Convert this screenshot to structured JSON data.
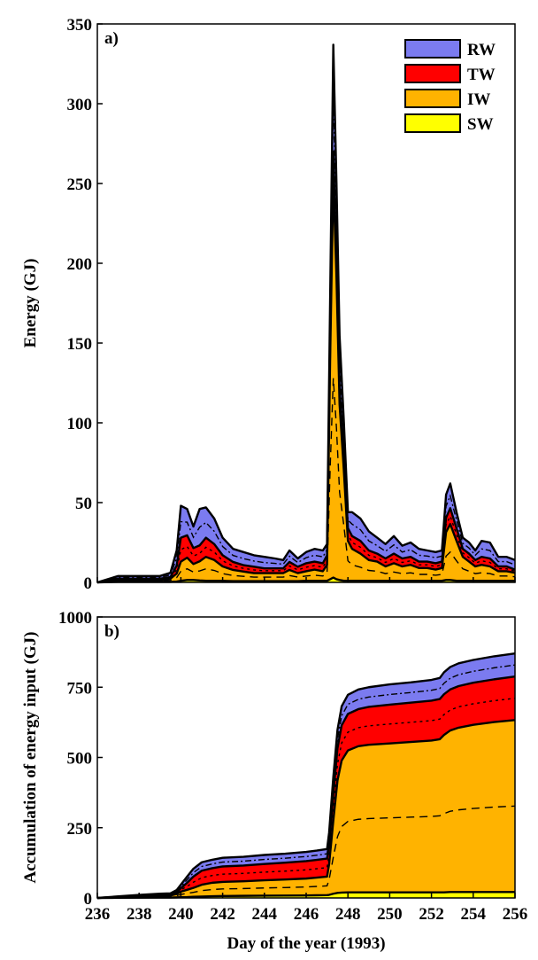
{
  "chart_data": [
    {
      "panel": "a)",
      "type": "area",
      "stacked": true,
      "ylabel": "Energy (GJ)",
      "ylim": [
        0,
        350
      ],
      "yticks": [
        0,
        50,
        100,
        150,
        200,
        250,
        300,
        350
      ],
      "xlim": [
        236,
        256
      ],
      "xticks": [
        236,
        238,
        240,
        242,
        244,
        246,
        248,
        250,
        252,
        254,
        256
      ],
      "legend": {
        "position": "top-right",
        "entries": [
          "RW",
          "TW",
          "IW",
          "SW"
        ]
      },
      "x": [
        236.0,
        236.5,
        237.0,
        237.5,
        238.0,
        238.5,
        239.0,
        239.5,
        239.8,
        240.0,
        240.3,
        240.6,
        240.9,
        241.2,
        241.6,
        242.0,
        242.5,
        243.0,
        243.5,
        244.0,
        244.5,
        244.9,
        245.2,
        245.6,
        246.0,
        246.4,
        246.8,
        247.0,
        247.15,
        247.3,
        247.45,
        247.6,
        247.8,
        248.0,
        248.2,
        248.6,
        249.0,
        249.4,
        249.8,
        250.2,
        250.6,
        251.0,
        251.4,
        251.8,
        252.2,
        252.5,
        252.7,
        252.9,
        253.2,
        253.5,
        253.8,
        254.1,
        254.4,
        254.8,
        255.2,
        255.6,
        256.0
      ],
      "series": [
        {
          "name": "SW",
          "color": "#ffff00",
          "values": [
            0,
            0.2,
            0.3,
            0.3,
            0.3,
            0.3,
            0.3,
            0.3,
            0.5,
            1.0,
            1.5,
            1.5,
            1.2,
            1.0,
            1.0,
            1.0,
            0.8,
            0.8,
            0.8,
            0.8,
            0.8,
            0.8,
            0.8,
            0.8,
            1.0,
            1.0,
            1.0,
            1.0,
            2.0,
            3.0,
            2.0,
            1.5,
            1.0,
            1.0,
            1.0,
            1.0,
            1.0,
            1.0,
            1.0,
            1.0,
            1.0,
            1.0,
            1.0,
            1.0,
            1.0,
            1.0,
            1.5,
            1.5,
            1.0,
            1.0,
            1.0,
            1.0,
            1.0,
            1.0,
            1.0,
            1.0,
            1.0
          ]
        },
        {
          "name": "IW",
          "color": "#ffb300",
          "values": [
            0,
            0.5,
            1.0,
            1.0,
            1.0,
            1.0,
            1.0,
            2.0,
            5.0,
            12.0,
            14.0,
            10.0,
            12.0,
            15.0,
            13.0,
            9.0,
            7.0,
            6.0,
            5.0,
            5.0,
            5.0,
            5.0,
            7.0,
            5.0,
            6.0,
            7.0,
            6.0,
            10.0,
            140.0,
            250.0,
            190.0,
            110.0,
            70.0,
            25.0,
            20.0,
            17.0,
            13.0,
            12.0,
            9.0,
            11.0,
            9.0,
            10.0,
            8.0,
            8.0,
            7.0,
            8.0,
            30.0,
            35.0,
            25.0,
            15.0,
            12.0,
            9.0,
            10.0,
            9.0,
            6.0,
            6.0,
            5.0
          ]
        },
        {
          "name": "TW",
          "color": "#ff0000",
          "values": [
            0,
            0.5,
            1.0,
            1.0,
            1.0,
            1.0,
            1.0,
            1.0,
            5.0,
            15.0,
            14.0,
            10.0,
            10.0,
            12.0,
            10.0,
            7.0,
            5.0,
            4.0,
            4.0,
            3.0,
            3.0,
            3.0,
            5.0,
            4.0,
            5.0,
            5.0,
            5.0,
            6.0,
            10.0,
            17.0,
            10.0,
            10.0,
            10.0,
            8.0,
            8.0,
            8.0,
            6.0,
            5.0,
            5.0,
            6.0,
            5.0,
            5.0,
            4.0,
            4.0,
            4.0,
            4.0,
            9.0,
            10.0,
            8.0,
            5.0,
            5.0,
            4.0,
            5.0,
            5.0,
            3.0,
            3.0,
            2.0
          ]
        },
        {
          "name": "RW",
          "color": "#7b7bf0",
          "values": [
            0,
            0.8,
            1.7,
            1.7,
            1.7,
            1.7,
            1.7,
            2.7,
            9.5,
            20.0,
            16.5,
            13.5,
            22.8,
            19.0,
            16.0,
            11.0,
            8.2,
            8.2,
            7.2,
            7.2,
            6.2,
            5.2,
            7.2,
            5.2,
            7.0,
            8.0,
            8.0,
            7.0,
            28.0,
            67.0,
            49.0,
            33.0,
            21.0,
            10.0,
            15.0,
            14.0,
            12.0,
            10.0,
            9.0,
            11.0,
            8.0,
            9.0,
            8.0,
            7.0,
            7.0,
            7.0,
            14.5,
            15.5,
            10.0,
            7.0,
            7.0,
            6.0,
            10.0,
            10.0,
            6.0,
            6.0,
            6.0
          ]
        }
      ]
    },
    {
      "panel": "b)",
      "type": "area",
      "stacked": true,
      "ylabel": "Accumulation of energy input (GJ)",
      "xlabel": "Day of the year (1993)",
      "ylim": [
        0,
        1000
      ],
      "yticks": [
        0,
        250,
        500,
        750,
        1000
      ],
      "xlim": [
        236,
        256
      ],
      "xticks": [
        236,
        238,
        240,
        242,
        244,
        246,
        248,
        250,
        252,
        254,
        256
      ],
      "x": [
        236.0,
        237.0,
        238.0,
        239.0,
        239.5,
        239.8,
        240.0,
        240.3,
        240.6,
        241.0,
        241.5,
        242.0,
        243.0,
        244.0,
        245.0,
        246.0,
        246.5,
        247.0,
        247.1,
        247.3,
        247.5,
        247.7,
        248.0,
        248.5,
        249.0,
        250.0,
        251.0,
        252.0,
        252.4,
        252.6,
        252.9,
        253.3,
        254.0,
        255.0,
        256.0
      ],
      "series": [
        {
          "name": "SW",
          "color": "#ffff00",
          "values": [
            0,
            0.5,
            1.0,
            1.5,
            1.5,
            2.0,
            2.5,
            3.0,
            4.0,
            5.0,
            6.0,
            7.0,
            7.5,
            8.0,
            8.5,
            9.0,
            9.5,
            10.0,
            11.0,
            15.0,
            18.0,
            19.0,
            20.0,
            20.0,
            20.0,
            20.0,
            20.0,
            20.0,
            20.0,
            20.0,
            21.0,
            21.0,
            21.0,
            21.0,
            21.0
          ]
        },
        {
          "name": "IW",
          "color": "#ffb300",
          "values": [
            0,
            2.5,
            5.0,
            6.5,
            7.5,
            12.0,
            20.0,
            26.0,
            32.0,
            42.0,
            48.0,
            50.0,
            52.0,
            55.0,
            57.0,
            60.0,
            63.0,
            66.0,
            110.0,
            260.0,
            400.0,
            470.0,
            505.0,
            520.0,
            525.0,
            530.0,
            535.0,
            540.0,
            545.0,
            560.0,
            575.0,
            585.0,
            595.0,
            605.0,
            612.0
          ]
        },
        {
          "name": "TW",
          "color": "#ff0000",
          "values": [
            0,
            1.0,
            2.0,
            3.0,
            3.0,
            6.0,
            12.0,
            25.0,
            40.0,
            50.0,
            52.0,
            55.0,
            56.0,
            58.0,
            60.0,
            62.0,
            63.0,
            64.0,
            70.0,
            95.0,
            115.0,
            125.0,
            130.0,
            132.0,
            135.0,
            138.0,
            140.0,
            142.0,
            143.0,
            145.0,
            146.0,
            148.0,
            150.0,
            152.0,
            155.0
          ]
        },
        {
          "name": "RW",
          "color": "#7b7bf0",
          "values": [
            0,
            1.5,
            3.0,
            4.0,
            4.5,
            8.0,
            13.0,
            22.0,
            28.0,
            30.0,
            30.0,
            31.0,
            31.0,
            32.0,
            32.0,
            33.0,
            33.0,
            34.0,
            42.0,
            60.0,
            65.0,
            68.0,
            68.0,
            70.0,
            70.0,
            72.0,
            72.0,
            74.0,
            75.0,
            78.0,
            80.0,
            81.0,
            81.0,
            82.0,
            82.0
          ]
        }
      ]
    }
  ]
}
